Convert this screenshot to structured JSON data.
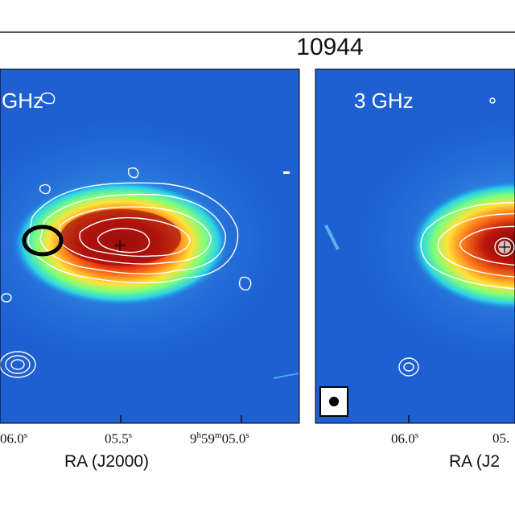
{
  "figure": {
    "title": "10944",
    "panels": [
      {
        "label": "GHz",
        "x_ticks": [
          "06.0",
          "05.5",
          "05.0"
        ],
        "x_tick_prefix_last": "9h59m",
        "xlabel": "RA (J2000)"
      },
      {
        "label": "3 GHz",
        "x_ticks": [
          "06.0",
          "05."
        ],
        "xlabel": "RA (J2"
      }
    ],
    "colors": {
      "background_map": "#1e64d6",
      "contour": "#ffffff",
      "core": "#7a0a0a",
      "ellipse_marker": "#000000"
    }
  }
}
